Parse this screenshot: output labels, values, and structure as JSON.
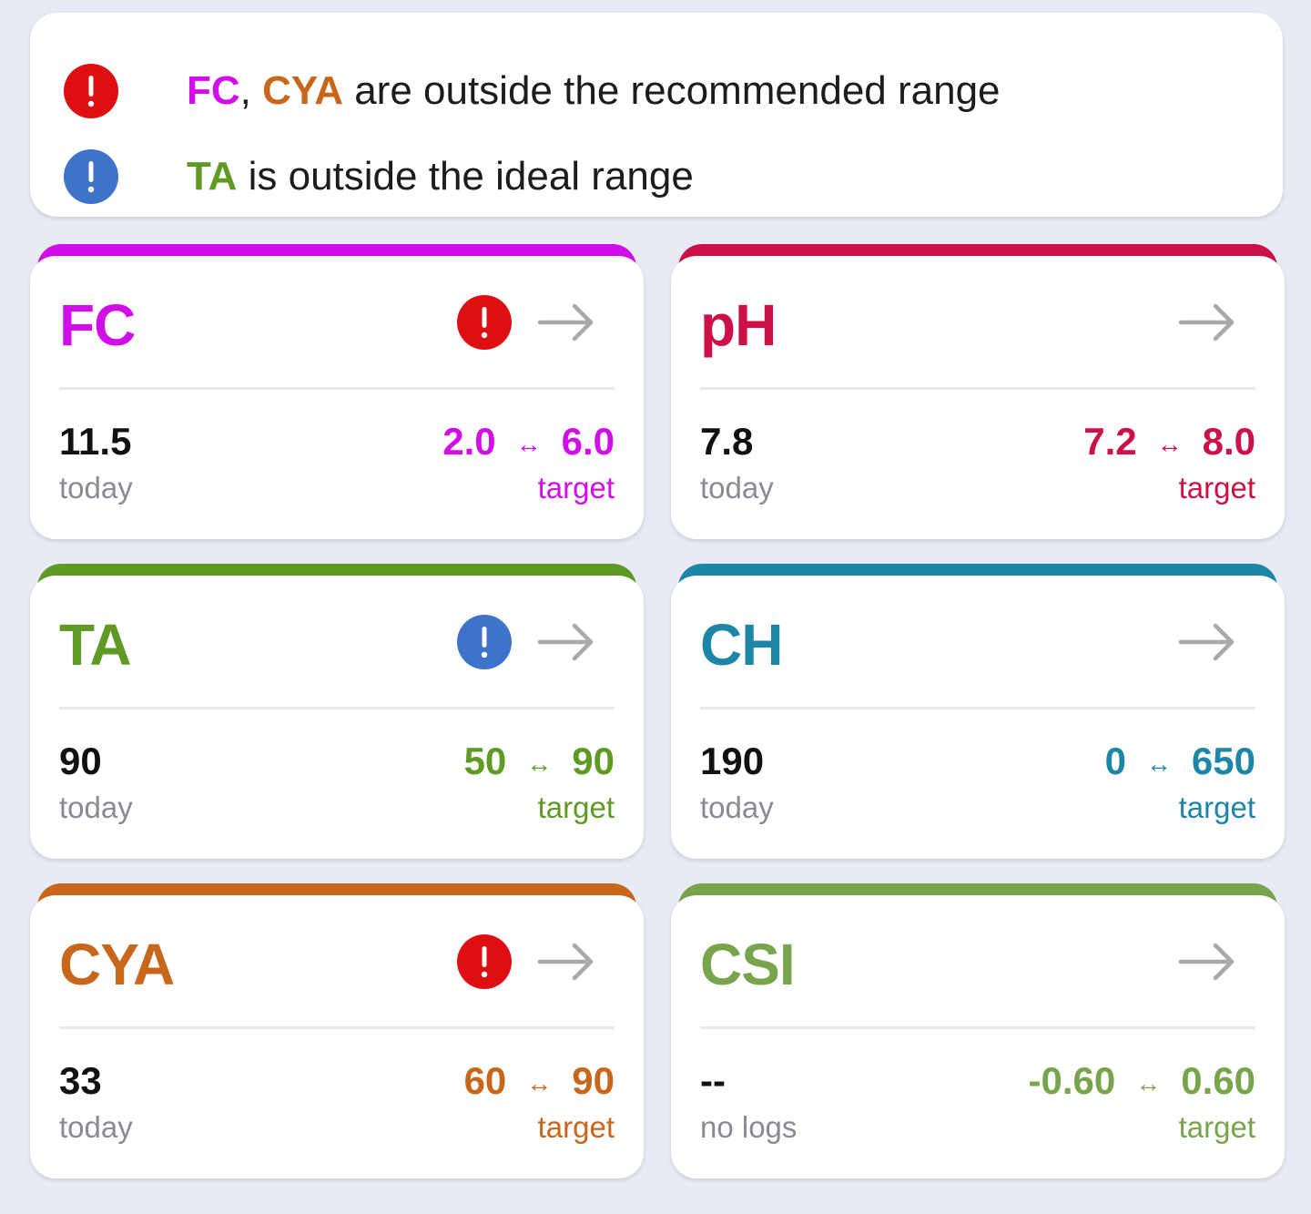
{
  "alerts": {
    "recommended": {
      "params": [
        {
          "name": "FC",
          "color": "#d20ee8"
        },
        {
          "name": "CYA",
          "color": "#c8661c"
        }
      ],
      "separator": ", ",
      "text": " are outside the recommended range",
      "icon": "exclamation-red-icon",
      "icon_color": "#dd0f12"
    },
    "ideal": {
      "param": {
        "name": "TA",
        "color": "#5e9a24"
      },
      "text": " is outside the ideal range",
      "icon": "exclamation-blue-icon",
      "icon_color": "#3f72c9"
    }
  },
  "cards": [
    {
      "id": "fc",
      "title": "FC",
      "color": "#d20ee8",
      "alert": "red",
      "today_value": "11.5",
      "today_label": "today",
      "target_low": "2.0",
      "target_high": "6.0",
      "range_separator": "↔",
      "target_label": "target",
      "arrow_icon": "arrow-right-icon"
    },
    {
      "id": "ph",
      "title": "pH",
      "color": "#cc1048",
      "alert": "none",
      "today_value": "7.8",
      "today_label": "today",
      "target_low": "7.2",
      "target_high": "8.0",
      "range_separator": "↔",
      "target_label": "target",
      "arrow_icon": "arrow-right-icon"
    },
    {
      "id": "ta",
      "title": "TA",
      "color": "#5e9a24",
      "alert": "blue",
      "today_value": "90",
      "today_label": "today",
      "target_low": "50",
      "target_high": "90",
      "range_separator": "↔",
      "target_label": "target",
      "arrow_icon": "arrow-right-icon"
    },
    {
      "id": "ch",
      "title": "CH",
      "color": "#1d86a6",
      "alert": "none",
      "today_value": "190",
      "today_label": "today",
      "target_low": "0",
      "target_high": "650",
      "range_separator": "↔",
      "target_label": "target",
      "arrow_icon": "arrow-right-icon"
    },
    {
      "id": "cya",
      "title": "CYA",
      "color": "#c8661c",
      "alert": "red",
      "today_value": "33",
      "today_label": "today",
      "target_low": "60",
      "target_high": "90",
      "range_separator": "↔",
      "target_label": "target",
      "arrow_icon": "arrow-right-icon"
    },
    {
      "id": "csi",
      "title": "CSI",
      "color": "#78a44c",
      "alert": "none",
      "today_value": "--",
      "today_label": "no logs",
      "target_low": "-0.60",
      "target_high": "0.60",
      "range_separator": "↔",
      "target_label": "target",
      "arrow_icon": "arrow-right-icon"
    }
  ],
  "colors": {
    "alert_red": "#dd0f12",
    "alert_blue": "#3f72c9",
    "arrow_gray": "#a8a8ad",
    "background": "#e8ebf4"
  }
}
